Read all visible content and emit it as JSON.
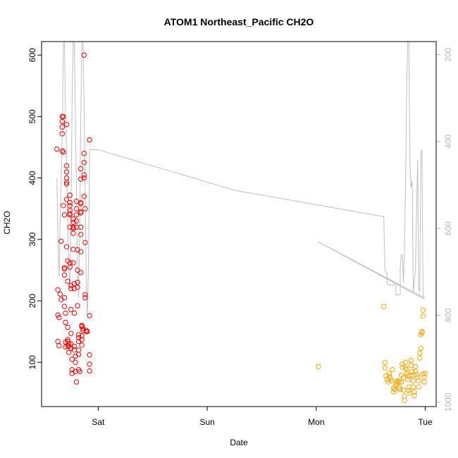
{
  "chart_data": {
    "type": "scatter",
    "title": "ATOM1 Northeast_Pacific CH2O",
    "xlabel": "Date",
    "ylabel": "CH2O",
    "x_ticks": [
      "Sat",
      "Sun",
      "Mon",
      "Tue"
    ],
    "xlim": [
      -0.52,
      3.1
    ],
    "ylim": [
      28,
      622
    ],
    "y_ticks": [
      100,
      200,
      300,
      400,
      500,
      600
    ],
    "y2_ticks": [
      200,
      400,
      600,
      800,
      1000
    ],
    "y2lim": [
      1010,
      170
    ],
    "grid": false,
    "colors": {
      "series_red": "#ff0000",
      "series_orange": "#ffa500",
      "altitude_line": "#bebebe",
      "axis": "#000000",
      "right_axis": "#b8b8b8"
    },
    "series": [
      {
        "marker": "open-circle",
        "color": "#ff0000",
        "points": [
          [
            -0.38,
            447
          ],
          [
            -0.37,
            218
          ],
          [
            -0.37,
            177
          ],
          [
            -0.36,
            173
          ],
          [
            -0.37,
            134
          ],
          [
            -0.36,
            127
          ],
          [
            -0.35,
            211
          ],
          [
            -0.34,
            202
          ],
          [
            -0.34,
            297
          ],
          [
            -0.33,
            500
          ],
          [
            -0.33,
            492
          ],
          [
            -0.33,
            483
          ],
          [
            -0.33,
            472
          ],
          [
            -0.33,
            444
          ],
          [
            -0.32,
            442
          ],
          [
            -0.32,
            500
          ],
          [
            -0.31,
            340
          ],
          [
            -0.32,
            355
          ],
          [
            -0.31,
            254
          ],
          [
            -0.31,
            252
          ],
          [
            -0.31,
            242
          ],
          [
            -0.31,
            205
          ],
          [
            -0.31,
            191
          ],
          [
            -0.3,
            165
          ],
          [
            -0.3,
            180
          ],
          [
            -0.3,
            133
          ],
          [
            -0.3,
            125
          ],
          [
            -0.29,
            487
          ],
          [
            -0.29,
            420
          ],
          [
            -0.29,
            410
          ],
          [
            -0.29,
            400
          ],
          [
            -0.29,
            393
          ],
          [
            -0.29,
            390
          ],
          [
            -0.29,
            365
          ],
          [
            -0.29,
            288
          ],
          [
            -0.28,
            265
          ],
          [
            -0.28,
            232
          ],
          [
            -0.28,
            157
          ],
          [
            -0.28,
            137
          ],
          [
            -0.28,
            134
          ],
          [
            -0.28,
            127
          ],
          [
            -0.27,
            126
          ],
          [
            -0.27,
            130
          ],
          [
            -0.27,
            116
          ],
          [
            -0.26,
            372
          ],
          [
            -0.26,
            360
          ],
          [
            -0.26,
            355
          ],
          [
            -0.26,
            347
          ],
          [
            -0.26,
            342
          ],
          [
            -0.26,
            340
          ],
          [
            -0.26,
            320
          ],
          [
            -0.26,
            262
          ],
          [
            -0.26,
            255
          ],
          [
            -0.25,
            225
          ],
          [
            -0.25,
            220
          ],
          [
            -0.25,
            186
          ],
          [
            -0.25,
            147
          ],
          [
            -0.25,
            130
          ],
          [
            -0.25,
            123
          ],
          [
            -0.24,
            105
          ],
          [
            -0.24,
            88
          ],
          [
            -0.24,
            82
          ],
          [
            -0.23,
            333
          ],
          [
            -0.23,
            328
          ],
          [
            -0.23,
            320
          ],
          [
            -0.23,
            318
          ],
          [
            -0.23,
            310
          ],
          [
            -0.23,
            284
          ],
          [
            -0.23,
            262
          ],
          [
            -0.22,
            228
          ],
          [
            -0.22,
            220
          ],
          [
            -0.22,
            180
          ],
          [
            -0.22,
            126
          ],
          [
            -0.22,
            120
          ],
          [
            -0.21,
            110
          ],
          [
            -0.21,
            100
          ],
          [
            -0.21,
            85
          ],
          [
            -0.2,
            68
          ],
          [
            -0.2,
            362
          ],
          [
            -0.2,
            350
          ],
          [
            -0.2,
            340
          ],
          [
            -0.2,
            330
          ],
          [
            -0.2,
            320
          ],
          [
            -0.19,
            283
          ],
          [
            -0.19,
            250
          ],
          [
            -0.19,
            230
          ],
          [
            -0.19,
            222
          ],
          [
            -0.19,
            192
          ],
          [
            -0.18,
            145
          ],
          [
            -0.18,
            140
          ],
          [
            -0.18,
            134
          ],
          [
            -0.18,
            120
          ],
          [
            -0.18,
            113
          ],
          [
            -0.18,
            88
          ],
          [
            -0.17,
            85
          ],
          [
            -0.16,
            415
          ],
          [
            -0.16,
            398
          ],
          [
            -0.16,
            360
          ],
          [
            -0.16,
            358
          ],
          [
            -0.16,
            345
          ],
          [
            -0.16,
            343
          ],
          [
            -0.16,
            320
          ],
          [
            -0.16,
            308
          ],
          [
            -0.16,
            280
          ],
          [
            -0.16,
            246
          ],
          [
            -0.15,
            160
          ],
          [
            -0.15,
            158
          ],
          [
            -0.15,
            160
          ],
          [
            -0.15,
            143
          ],
          [
            -0.15,
            137
          ],
          [
            -0.15,
            128
          ],
          [
            -0.14,
            155
          ],
          [
            -0.14,
            152
          ],
          [
            -0.13,
            600
          ],
          [
            -0.13,
            440
          ],
          [
            -0.13,
            425
          ],
          [
            -0.13,
            405
          ],
          [
            -0.13,
            400
          ],
          [
            -0.13,
            370
          ],
          [
            -0.12,
            350
          ],
          [
            -0.12,
            295
          ],
          [
            -0.12,
            210
          ],
          [
            -0.12,
            205
          ],
          [
            -0.11,
            152
          ],
          [
            -0.11,
            150
          ],
          [
            -0.1,
            150
          ],
          [
            -0.08,
            462
          ],
          [
            -0.08,
            176
          ],
          [
            -0.08,
            112
          ],
          [
            -0.08,
            97
          ],
          [
            -0.08,
            86
          ]
        ]
      },
      {
        "marker": "open-circle",
        "color": "#ffa500",
        "points": [
          [
            2.02,
            93
          ],
          [
            2.62,
            191
          ],
          [
            2.63,
            100
          ],
          [
            2.63,
            91
          ],
          [
            2.64,
            78
          ],
          [
            2.65,
            72
          ],
          [
            2.66,
            68
          ],
          [
            2.67,
            82
          ],
          [
            2.67,
            77
          ],
          [
            2.68,
            74
          ],
          [
            2.69,
            70
          ],
          [
            2.7,
            88
          ],
          [
            2.71,
            58
          ],
          [
            2.71,
            52
          ],
          [
            2.72,
            56
          ],
          [
            2.73,
            69
          ],
          [
            2.73,
            62
          ],
          [
            2.74,
            66
          ],
          [
            2.75,
            70
          ],
          [
            2.76,
            68
          ],
          [
            2.76,
            59
          ],
          [
            2.77,
            56
          ],
          [
            2.78,
            68
          ],
          [
            2.78,
            79
          ],
          [
            2.79,
            92
          ],
          [
            2.79,
            97
          ],
          [
            2.8,
            75
          ],
          [
            2.8,
            55
          ],
          [
            2.81,
            38
          ],
          [
            2.81,
            45
          ],
          [
            2.82,
            100
          ],
          [
            2.82,
            91
          ],
          [
            2.83,
            88
          ],
          [
            2.83,
            82
          ],
          [
            2.84,
            78
          ],
          [
            2.84,
            72
          ],
          [
            2.85,
            60
          ],
          [
            2.85,
            54
          ],
          [
            2.86,
            50
          ],
          [
            2.86,
            78
          ],
          [
            2.87,
            103
          ],
          [
            2.87,
            95
          ],
          [
            2.88,
            85
          ],
          [
            2.88,
            79
          ],
          [
            2.89,
            70
          ],
          [
            2.89,
            60
          ],
          [
            2.9,
            52
          ],
          [
            2.9,
            46
          ],
          [
            2.91,
            93
          ],
          [
            2.91,
            85
          ],
          [
            2.92,
            80
          ],
          [
            2.93,
            76
          ],
          [
            2.94,
            70
          ],
          [
            2.94,
            60
          ],
          [
            2.95,
            115
          ],
          [
            2.95,
            107
          ],
          [
            2.96,
            123
          ],
          [
            2.96,
            145
          ],
          [
            2.97,
            148
          ],
          [
            2.97,
            150
          ],
          [
            2.98,
            185
          ],
          [
            2.98,
            175
          ],
          [
            2.98,
            81
          ],
          [
            2.99,
            68
          ],
          [
            2.99,
            76
          ],
          [
            3.0,
            82
          ]
        ]
      },
      {
        "type": "line",
        "color": "#bebebe",
        "points": [
          [
            -0.38,
            400
          ],
          [
            -0.37,
            300
          ],
          [
            -0.36,
            240
          ],
          [
            -0.35,
            330
          ],
          [
            -0.33,
            470
          ],
          [
            -0.32,
            622
          ],
          [
            -0.31,
            622
          ],
          [
            -0.3,
            500
          ],
          [
            -0.29,
            430
          ],
          [
            -0.28,
            330
          ],
          [
            -0.27,
            250
          ],
          [
            -0.26,
            220
          ],
          [
            -0.25,
            350
          ],
          [
            -0.24,
            520
          ],
          [
            -0.23,
            622
          ],
          [
            -0.22,
            622
          ],
          [
            -0.21,
            500
          ],
          [
            -0.2,
            380
          ],
          [
            -0.19,
            250
          ],
          [
            -0.18,
            205
          ],
          [
            -0.17,
            320
          ],
          [
            -0.16,
            500
          ],
          [
            -0.15,
            622
          ],
          [
            -0.14,
            622
          ],
          [
            -0.13,
            520
          ],
          [
            -0.12,
            380
          ],
          [
            -0.11,
            230
          ],
          [
            -0.1,
            175
          ],
          [
            -0.09,
            260
          ],
          [
            -0.08,
            420
          ],
          [
            -0.08,
            446
          ],
          [
            0.0,
            446
          ],
          [
            1.25,
            380
          ],
          [
            2.62,
            337
          ],
          [
            2.63,
            250
          ],
          [
            2.65,
            245
          ],
          [
            2.65,
            228
          ],
          [
            2.67,
            226
          ],
          [
            2.73,
            226
          ],
          [
            2.73,
            210
          ],
          [
            2.77,
            210
          ],
          [
            2.77,
            252
          ],
          [
            2.78,
            275
          ],
          [
            2.79,
            275
          ],
          [
            2.8,
            230
          ],
          [
            2.81,
            290
          ],
          [
            2.82,
            395
          ],
          [
            2.83,
            560
          ],
          [
            2.84,
            622
          ],
          [
            2.85,
            622
          ],
          [
            2.86,
            420
          ],
          [
            2.87,
            385
          ],
          [
            2.88,
            395
          ],
          [
            2.89,
            215
          ],
          [
            2.91,
            250
          ],
          [
            2.93,
            430
          ],
          [
            2.94,
            220
          ],
          [
            2.95,
            215
          ],
          [
            2.96,
            440
          ],
          [
            2.97,
            446
          ],
          [
            2.98,
            210
          ],
          [
            2.99,
            205
          ],
          [
            2.02,
            296
          ],
          [
            2.99,
            203
          ]
        ]
      }
    ]
  }
}
